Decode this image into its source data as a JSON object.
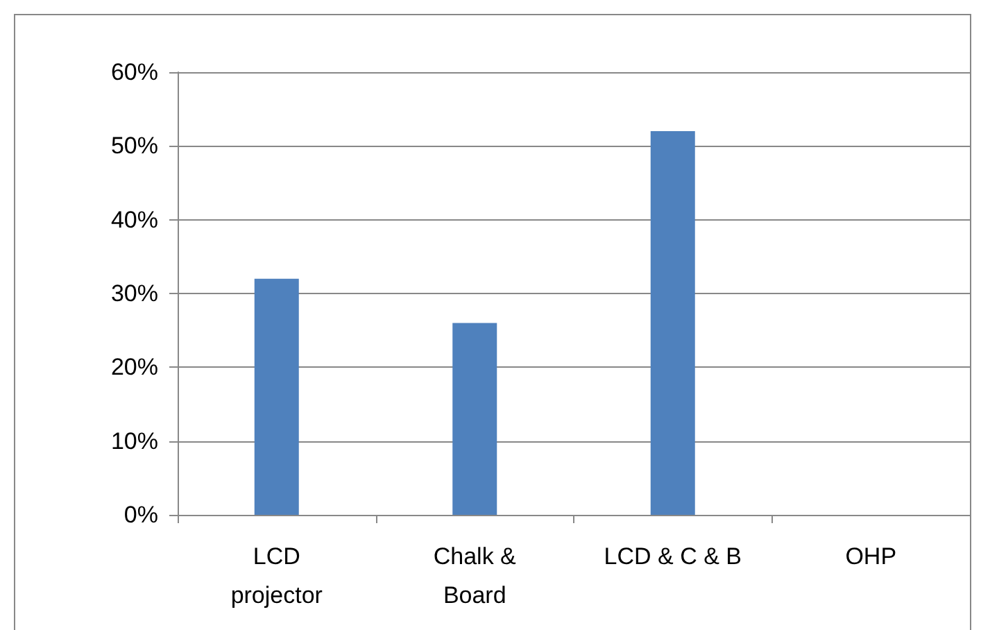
{
  "chart_data": {
    "type": "bar",
    "categories": [
      "LCD\nprojector",
      "Chalk &\nBoard",
      "LCD & C & B",
      "OHP"
    ],
    "values": [
      32,
      26,
      52,
      0
    ],
    "color": "#4f81bd",
    "ylim": [
      0,
      60
    ],
    "yticks": [
      {
        "value": 0,
        "label": "0%"
      },
      {
        "value": 10,
        "label": "10%"
      },
      {
        "value": 20,
        "label": "20%"
      },
      {
        "value": 30,
        "label": "30%"
      },
      {
        "value": 40,
        "label": "40%"
      },
      {
        "value": 50,
        "label": "50%"
      },
      {
        "value": 60,
        "label": "60%"
      }
    ],
    "grid": "y"
  }
}
